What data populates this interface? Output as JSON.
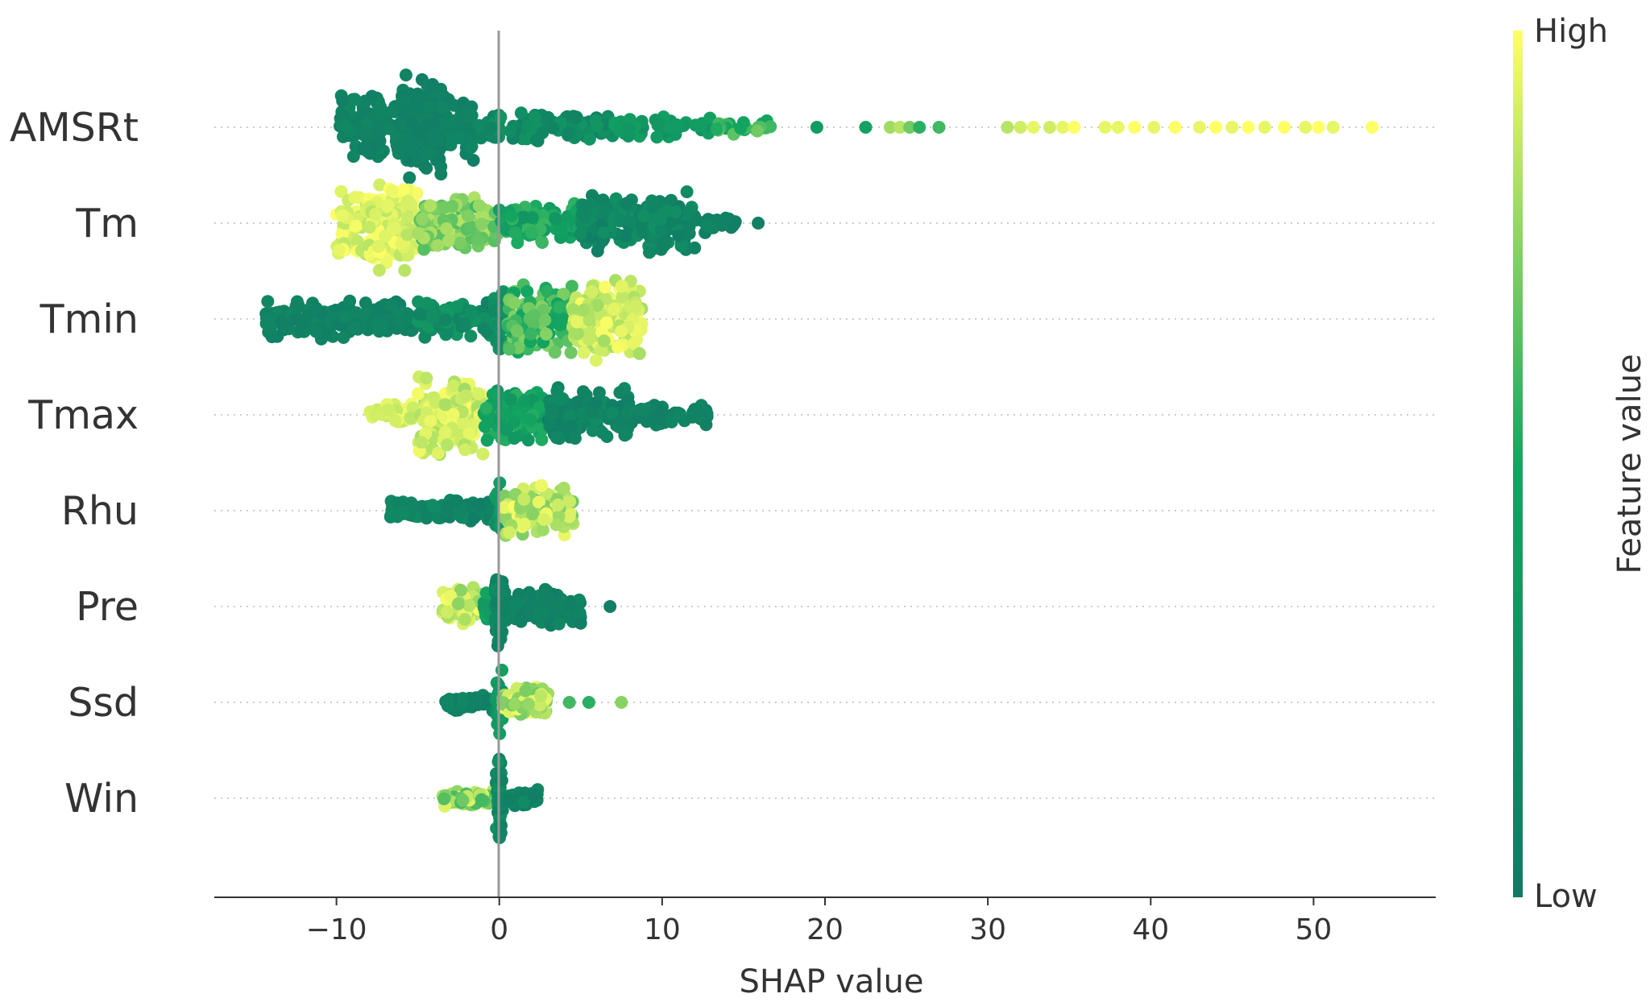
{
  "chart_data": {
    "type": "scatter",
    "subtype": "shap-beeswarm-summary",
    "title": "",
    "xlabel": "SHAP value",
    "ylabel": "",
    "xlim": [
      -17.5,
      57.5
    ],
    "xticks": [
      -10,
      0,
      10,
      20,
      30,
      40,
      50
    ],
    "xtick_labels": [
      "−10",
      "0",
      "10",
      "20",
      "30",
      "40",
      "50"
    ],
    "zero_line": true,
    "grid": false,
    "colorbar": {
      "title": "Feature value",
      "high_label": "High",
      "low_label": "Low",
      "low_color": "#117a65",
      "mid_color": "#12a661",
      "high_color": "#ffff66"
    },
    "features": [
      {
        "name": "AMSRt",
        "segments": [
          {
            "min": -9.8,
            "max": -1.5,
            "n": 240,
            "h": 1.0,
            "c": [
              0.05,
              0.15
            ]
          },
          {
            "min": -6.2,
            "max": -3.5,
            "n": 90,
            "h": 1.5,
            "c": [
              0.05,
              0.12
            ]
          },
          {
            "min": -1.5,
            "max": 7,
            "n": 110,
            "h": 0.45,
            "c": [
              0.1,
              0.3
            ]
          },
          {
            "min": 7,
            "max": 13,
            "n": 50,
            "h": 0.3,
            "c": [
              0.25,
              0.45
            ]
          },
          {
            "min": 13,
            "max": 16.8,
            "n": 25,
            "h": 0.25,
            "c": [
              0.45,
              0.7
            ]
          }
        ],
        "extra_points": [
          {
            "x": 19.5,
            "c": 0.4
          },
          {
            "x": 22.5,
            "c": 0.45
          },
          {
            "x": 24,
            "c": 0.8
          },
          {
            "x": 24.6,
            "c": 0.85
          },
          {
            "x": 25.2,
            "c": 0.7
          },
          {
            "x": 25.8,
            "c": 0.55
          },
          {
            "x": 27,
            "c": 0.6
          },
          {
            "x": 31.2,
            "c": 0.85
          },
          {
            "x": 32,
            "c": 0.9
          },
          {
            "x": 32.8,
            "c": 0.95
          },
          {
            "x": 33.8,
            "c": 0.9
          },
          {
            "x": 34.6,
            "c": 0.95
          },
          {
            "x": 35.3,
            "c": 1.0
          },
          {
            "x": 37.2,
            "c": 0.95
          },
          {
            "x": 38,
            "c": 0.95
          },
          {
            "x": 39,
            "c": 1.0
          },
          {
            "x": 40.2,
            "c": 0.95
          },
          {
            "x": 41.5,
            "c": 1.0
          },
          {
            "x": 43,
            "c": 0.95
          },
          {
            "x": 44,
            "c": 1.0
          },
          {
            "x": 45,
            "c": 0.95
          },
          {
            "x": 46,
            "c": 1.0
          },
          {
            "x": 47,
            "c": 0.95
          },
          {
            "x": 48.2,
            "c": 1.0
          },
          {
            "x": 49.5,
            "c": 0.95
          },
          {
            "x": 50.3,
            "c": 1.0
          },
          {
            "x": 51.2,
            "c": 0.95
          },
          {
            "x": 53.6,
            "c": 1.0
          }
        ]
      },
      {
        "name": "Tm",
        "segments": [
          {
            "min": -10,
            "max": -5,
            "n": 150,
            "h": 1.1,
            "c": [
              0.85,
              1.0
            ]
          },
          {
            "min": -8,
            "max": -5.5,
            "n": 50,
            "h": 1.45,
            "c": [
              0.85,
              1.0
            ]
          },
          {
            "min": -5,
            "max": 0,
            "n": 120,
            "h": 0.8,
            "c": [
              0.6,
              0.85
            ]
          },
          {
            "min": 0,
            "max": 5,
            "n": 110,
            "h": 0.6,
            "c": [
              0.3,
              0.6
            ]
          },
          {
            "min": 5,
            "max": 12,
            "n": 160,
            "h": 0.9,
            "c": [
              0.05,
              0.25
            ]
          },
          {
            "min": 12,
            "max": 14.6,
            "n": 20,
            "h": 0.3,
            "c": [
              0.05,
              0.15
            ]
          }
        ],
        "extra_points": [
          {
            "x": 15.9,
            "c": 0.05
          }
        ]
      },
      {
        "name": "Tmin",
        "segments": [
          {
            "min": -14.5,
            "max": -5,
            "n": 170,
            "h": 0.6,
            "c": [
              0.05,
              0.15
            ]
          },
          {
            "min": -5,
            "max": 0,
            "n": 100,
            "h": 0.55,
            "c": [
              0.1,
              0.35
            ]
          },
          {
            "min": -0.3,
            "max": 0.3,
            "n": 30,
            "h": 1.0,
            "c": [
              0.15,
              0.35
            ]
          },
          {
            "min": 0.5,
            "max": 4.5,
            "n": 130,
            "h": 1.0,
            "c": [
              0.45,
              0.75
            ]
          },
          {
            "min": 4.5,
            "max": 8.8,
            "n": 140,
            "h": 1.15,
            "c": [
              0.8,
              1.0
            ]
          }
        ],
        "extra_points": []
      },
      {
        "name": "Tmax",
        "segments": [
          {
            "min": -8,
            "max": -5,
            "n": 40,
            "h": 0.3,
            "c": [
              0.85,
              1.0
            ]
          },
          {
            "min": -5,
            "max": -1,
            "n": 160,
            "h": 1.15,
            "c": [
              0.8,
              1.0
            ]
          },
          {
            "min": -1,
            "max": 3,
            "n": 110,
            "h": 0.8,
            "c": [
              0.3,
              0.55
            ]
          },
          {
            "min": 3,
            "max": 8,
            "n": 120,
            "h": 0.75,
            "c": [
              0.05,
              0.2
            ]
          },
          {
            "min": 8,
            "max": 12.8,
            "n": 50,
            "h": 0.35,
            "c": [
              0.05,
              0.15
            ]
          }
        ],
        "extra_points": []
      },
      {
        "name": "Rhu",
        "segments": [
          {
            "min": -6.7,
            "max": -0.5,
            "n": 130,
            "h": 0.32,
            "c": [
              0.05,
              0.2
            ]
          },
          {
            "min": -0.3,
            "max": 0.3,
            "n": 30,
            "h": 0.9,
            "c": [
              0.2,
              0.4
            ]
          },
          {
            "min": 0.3,
            "max": 4.6,
            "n": 110,
            "h": 0.75,
            "c": [
              0.7,
              1.0
            ]
          }
        ],
        "extra_points": []
      },
      {
        "name": "Pre",
        "segments": [
          {
            "min": -3.5,
            "max": -1,
            "n": 70,
            "h": 0.6,
            "c": [
              0.75,
              1.0
            ]
          },
          {
            "min": -1,
            "max": 0,
            "n": 30,
            "h": 0.5,
            "c": [
              0.3,
              0.5
            ]
          },
          {
            "min": -0.25,
            "max": 0.25,
            "n": 40,
            "h": 1.2,
            "c": [
              0.05,
              0.2
            ]
          },
          {
            "min": 0.2,
            "max": 5,
            "n": 110,
            "h": 0.55,
            "c": [
              0.05,
              0.15
            ]
          }
        ],
        "extra_points": [
          {
            "x": 6.8,
            "c": 0.05
          }
        ]
      },
      {
        "name": "Ssd",
        "segments": [
          {
            "min": -3.3,
            "max": -0.3,
            "n": 50,
            "h": 0.25,
            "c": [
              0.05,
              0.15
            ]
          },
          {
            "min": -0.25,
            "max": 0.25,
            "n": 30,
            "h": 1.0,
            "c": [
              0.2,
              0.45
            ]
          },
          {
            "min": 0.2,
            "max": 3,
            "n": 90,
            "h": 0.45,
            "c": [
              0.7,
              1.0
            ]
          }
        ],
        "extra_points": [
          {
            "x": 4.3,
            "c": 0.6
          },
          {
            "x": 5.5,
            "c": 0.55
          },
          {
            "x": 7.5,
            "c": 0.75
          }
        ]
      },
      {
        "name": "Win",
        "segments": [
          {
            "min": -3.5,
            "max": -0.3,
            "n": 60,
            "h": 0.25,
            "c": [
              0.6,
              0.95
            ]
          },
          {
            "min": -0.2,
            "max": 0.2,
            "n": 40,
            "h": 1.2,
            "c": [
              0.05,
              0.25
            ]
          },
          {
            "min": 0.3,
            "max": 2.4,
            "n": 55,
            "h": 0.25,
            "c": [
              0.05,
              0.2
            ]
          }
        ],
        "extra_points": []
      }
    ]
  }
}
